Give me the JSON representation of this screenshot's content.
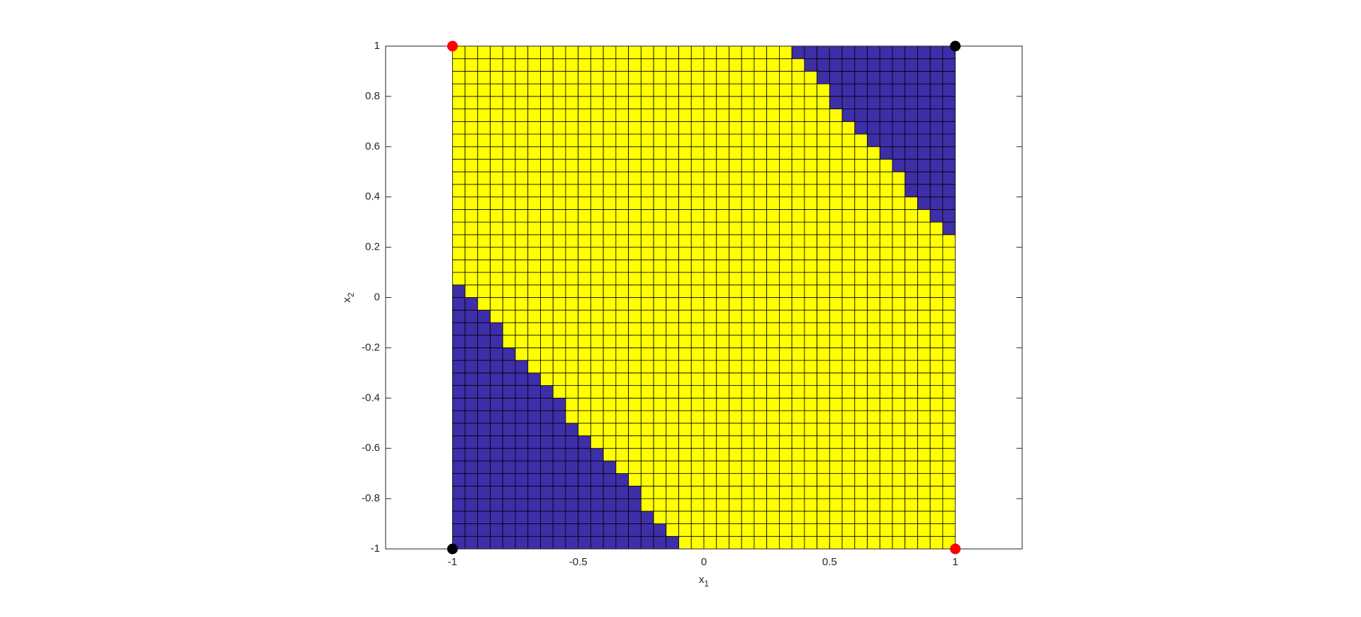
{
  "chart_data": {
    "type": "surface",
    "xlim": [
      -1.266,
      1.266
    ],
    "ylim": [
      -1,
      1
    ],
    "xticks": [
      -1,
      -0.5,
      0,
      0.5,
      1
    ],
    "yticks": [
      -1,
      -0.8,
      -0.6,
      -0.4,
      -0.2,
      0,
      0.2,
      0.4,
      0.6,
      0.8,
      1
    ],
    "xlabel": {
      "text": "x",
      "subscript": "1"
    },
    "ylabel": {
      "text": "x",
      "subscript": "2"
    },
    "grid_x": [
      -1,
      1
    ],
    "grid_y": [
      -1,
      1
    ],
    "cmap": [
      "#3e2ea8",
      "#ffff00"
    ],
    "z": [
      [
        0,
        0,
        0,
        0,
        0,
        0,
        0,
        0,
        0,
        0,
        0,
        0,
        0,
        0,
        0,
        0,
        0,
        0,
        1,
        1,
        1,
        1,
        1,
        1,
        1,
        1,
        1,
        1,
        1,
        1,
        1,
        1,
        1,
        1,
        1,
        1,
        1,
        1,
        1,
        1
      ],
      [
        0,
        0,
        0,
        0,
        0,
        0,
        0,
        0,
        0,
        0,
        0,
        0,
        0,
        0,
        0,
        0,
        0,
        1,
        1,
        1,
        1,
        1,
        1,
        1,
        1,
        1,
        1,
        1,
        1,
        1,
        1,
        1,
        1,
        1,
        1,
        1,
        1,
        1,
        1,
        1
      ],
      [
        0,
        0,
        0,
        0,
        0,
        0,
        0,
        0,
        0,
        0,
        0,
        0,
        0,
        0,
        0,
        0,
        1,
        1,
        1,
        1,
        1,
        1,
        1,
        1,
        1,
        1,
        1,
        1,
        1,
        1,
        1,
        1,
        1,
        1,
        1,
        1,
        1,
        1,
        1,
        1
      ],
      [
        0,
        0,
        0,
        0,
        0,
        0,
        0,
        0,
        0,
        0,
        0,
        0,
        0,
        0,
        0,
        1,
        1,
        1,
        1,
        1,
        1,
        1,
        1,
        1,
        1,
        1,
        1,
        1,
        1,
        1,
        1,
        1,
        1,
        1,
        1,
        1,
        1,
        1,
        1,
        1
      ],
      [
        0,
        0,
        0,
        0,
        0,
        0,
        0,
        0,
        0,
        0,
        0,
        0,
        0,
        0,
        0,
        1,
        1,
        1,
        1,
        1,
        1,
        1,
        1,
        1,
        1,
        1,
        1,
        1,
        1,
        1,
        1,
        1,
        1,
        1,
        1,
        1,
        1,
        1,
        1,
        1
      ],
      [
        0,
        0,
        0,
        0,
        0,
        0,
        0,
        0,
        0,
        0,
        0,
        0,
        0,
        0,
        1,
        1,
        1,
        1,
        1,
        1,
        1,
        1,
        1,
        1,
        1,
        1,
        1,
        1,
        1,
        1,
        1,
        1,
        1,
        1,
        1,
        1,
        1,
        1,
        1,
        1
      ],
      [
        0,
        0,
        0,
        0,
        0,
        0,
        0,
        0,
        0,
        0,
        0,
        0,
        0,
        1,
        1,
        1,
        1,
        1,
        1,
        1,
        1,
        1,
        1,
        1,
        1,
        1,
        1,
        1,
        1,
        1,
        1,
        1,
        1,
        1,
        1,
        1,
        1,
        1,
        1,
        1
      ],
      [
        0,
        0,
        0,
        0,
        0,
        0,
        0,
        0,
        0,
        0,
        0,
        0,
        1,
        1,
        1,
        1,
        1,
        1,
        1,
        1,
        1,
        1,
        1,
        1,
        1,
        1,
        1,
        1,
        1,
        1,
        1,
        1,
        1,
        1,
        1,
        1,
        1,
        1,
        1,
        1
      ],
      [
        0,
        0,
        0,
        0,
        0,
        0,
        0,
        0,
        0,
        0,
        0,
        1,
        1,
        1,
        1,
        1,
        1,
        1,
        1,
        1,
        1,
        1,
        1,
        1,
        1,
        1,
        1,
        1,
        1,
        1,
        1,
        1,
        1,
        1,
        1,
        1,
        1,
        1,
        1,
        1
      ],
      [
        0,
        0,
        0,
        0,
        0,
        0,
        0,
        0,
        0,
        0,
        1,
        1,
        1,
        1,
        1,
        1,
        1,
        1,
        1,
        1,
        1,
        1,
        1,
        1,
        1,
        1,
        1,
        1,
        1,
        1,
        1,
        1,
        1,
        1,
        1,
        1,
        1,
        1,
        1,
        1
      ],
      [
        0,
        0,
        0,
        0,
        0,
        0,
        0,
        0,
        0,
        1,
        1,
        1,
        1,
        1,
        1,
        1,
        1,
        1,
        1,
        1,
        1,
        1,
        1,
        1,
        1,
        1,
        1,
        1,
        1,
        1,
        1,
        1,
        1,
        1,
        1,
        1,
        1,
        1,
        1,
        1
      ],
      [
        0,
        0,
        0,
        0,
        0,
        0,
        0,
        0,
        0,
        1,
        1,
        1,
        1,
        1,
        1,
        1,
        1,
        1,
        1,
        1,
        1,
        1,
        1,
        1,
        1,
        1,
        1,
        1,
        1,
        1,
        1,
        1,
        1,
        1,
        1,
        1,
        1,
        1,
        1,
        1
      ],
      [
        0,
        0,
        0,
        0,
        0,
        0,
        0,
        0,
        1,
        1,
        1,
        1,
        1,
        1,
        1,
        1,
        1,
        1,
        1,
        1,
        1,
        1,
        1,
        1,
        1,
        1,
        1,
        1,
        1,
        1,
        1,
        1,
        1,
        1,
        1,
        1,
        1,
        1,
        1,
        1
      ],
      [
        0,
        0,
        0,
        0,
        0,
        0,
        0,
        1,
        1,
        1,
        1,
        1,
        1,
        1,
        1,
        1,
        1,
        1,
        1,
        1,
        1,
        1,
        1,
        1,
        1,
        1,
        1,
        1,
        1,
        1,
        1,
        1,
        1,
        1,
        1,
        1,
        1,
        1,
        1,
        1
      ],
      [
        0,
        0,
        0,
        0,
        0,
        0,
        1,
        1,
        1,
        1,
        1,
        1,
        1,
        1,
        1,
        1,
        1,
        1,
        1,
        1,
        1,
        1,
        1,
        1,
        1,
        1,
        1,
        1,
        1,
        1,
        1,
        1,
        1,
        1,
        1,
        1,
        1,
        1,
        1,
        1
      ],
      [
        0,
        0,
        0,
        0,
        0,
        1,
        1,
        1,
        1,
        1,
        1,
        1,
        1,
        1,
        1,
        1,
        1,
        1,
        1,
        1,
        1,
        1,
        1,
        1,
        1,
        1,
        1,
        1,
        1,
        1,
        1,
        1,
        1,
        1,
        1,
        1,
        1,
        1,
        1,
        1
      ],
      [
        0,
        0,
        0,
        0,
        1,
        1,
        1,
        1,
        1,
        1,
        1,
        1,
        1,
        1,
        1,
        1,
        1,
        1,
        1,
        1,
        1,
        1,
        1,
        1,
        1,
        1,
        1,
        1,
        1,
        1,
        1,
        1,
        1,
        1,
        1,
        1,
        1,
        1,
        1,
        1
      ],
      [
        0,
        0,
        0,
        0,
        1,
        1,
        1,
        1,
        1,
        1,
        1,
        1,
        1,
        1,
        1,
        1,
        1,
        1,
        1,
        1,
        1,
        1,
        1,
        1,
        1,
        1,
        1,
        1,
        1,
        1,
        1,
        1,
        1,
        1,
        1,
        1,
        1,
        1,
        1,
        1
      ],
      [
        0,
        0,
        0,
        1,
        1,
        1,
        1,
        1,
        1,
        1,
        1,
        1,
        1,
        1,
        1,
        1,
        1,
        1,
        1,
        1,
        1,
        1,
        1,
        1,
        1,
        1,
        1,
        1,
        1,
        1,
        1,
        1,
        1,
        1,
        1,
        1,
        1,
        1,
        1,
        1
      ],
      [
        0,
        0,
        1,
        1,
        1,
        1,
        1,
        1,
        1,
        1,
        1,
        1,
        1,
        1,
        1,
        1,
        1,
        1,
        1,
        1,
        1,
        1,
        1,
        1,
        1,
        1,
        1,
        1,
        1,
        1,
        1,
        1,
        1,
        1,
        1,
        1,
        1,
        1,
        1,
        1
      ],
      [
        0,
        1,
        1,
        1,
        1,
        1,
        1,
        1,
        1,
        1,
        1,
        1,
        1,
        1,
        1,
        1,
        1,
        1,
        1,
        1,
        1,
        1,
        1,
        1,
        1,
        1,
        1,
        1,
        1,
        1,
        1,
        1,
        1,
        1,
        1,
        1,
        1,
        1,
        1,
        1
      ],
      [
        1,
        1,
        1,
        1,
        1,
        1,
        1,
        1,
        1,
        1,
        1,
        1,
        1,
        1,
        1,
        1,
        1,
        1,
        1,
        1,
        1,
        1,
        1,
        1,
        1,
        1,
        1,
        1,
        1,
        1,
        1,
        1,
        1,
        1,
        1,
        1,
        1,
        1,
        1,
        1
      ],
      [
        1,
        1,
        1,
        1,
        1,
        1,
        1,
        1,
        1,
        1,
        1,
        1,
        1,
        1,
        1,
        1,
        1,
        1,
        1,
        1,
        1,
        1,
        1,
        1,
        1,
        1,
        1,
        1,
        1,
        1,
        1,
        1,
        1,
        1,
        1,
        1,
        1,
        1,
        1,
        1
      ],
      [
        1,
        1,
        1,
        1,
        1,
        1,
        1,
        1,
        1,
        1,
        1,
        1,
        1,
        1,
        1,
        1,
        1,
        1,
        1,
        1,
        1,
        1,
        1,
        1,
        1,
        1,
        1,
        1,
        1,
        1,
        1,
        1,
        1,
        1,
        1,
        1,
        1,
        1,
        1,
        1
      ],
      [
        1,
        1,
        1,
        1,
        1,
        1,
        1,
        1,
        1,
        1,
        1,
        1,
        1,
        1,
        1,
        1,
        1,
        1,
        1,
        1,
        1,
        1,
        1,
        1,
        1,
        1,
        1,
        1,
        1,
        1,
        1,
        1,
        1,
        1,
        1,
        1,
        1,
        1,
        1,
        1
      ],
      [
        1,
        1,
        1,
        1,
        1,
        1,
        1,
        1,
        1,
        1,
        1,
        1,
        1,
        1,
        1,
        1,
        1,
        1,
        1,
        1,
        1,
        1,
        1,
        1,
        1,
        1,
        1,
        1,
        1,
        1,
        1,
        1,
        1,
        1,
        1,
        1,
        1,
        1,
        1,
        0
      ],
      [
        1,
        1,
        1,
        1,
        1,
        1,
        1,
        1,
        1,
        1,
        1,
        1,
        1,
        1,
        1,
        1,
        1,
        1,
        1,
        1,
        1,
        1,
        1,
        1,
        1,
        1,
        1,
        1,
        1,
        1,
        1,
        1,
        1,
        1,
        1,
        1,
        1,
        1,
        0,
        0
      ],
      [
        1,
        1,
        1,
        1,
        1,
        1,
        1,
        1,
        1,
        1,
        1,
        1,
        1,
        1,
        1,
        1,
        1,
        1,
        1,
        1,
        1,
        1,
        1,
        1,
        1,
        1,
        1,
        1,
        1,
        1,
        1,
        1,
        1,
        1,
        1,
        1,
        1,
        0,
        0,
        0
      ],
      [
        1,
        1,
        1,
        1,
        1,
        1,
        1,
        1,
        1,
        1,
        1,
        1,
        1,
        1,
        1,
        1,
        1,
        1,
        1,
        1,
        1,
        1,
        1,
        1,
        1,
        1,
        1,
        1,
        1,
        1,
        1,
        1,
        1,
        1,
        1,
        1,
        0,
        0,
        0,
        0
      ],
      [
        1,
        1,
        1,
        1,
        1,
        1,
        1,
        1,
        1,
        1,
        1,
        1,
        1,
        1,
        1,
        1,
        1,
        1,
        1,
        1,
        1,
        1,
        1,
        1,
        1,
        1,
        1,
        1,
        1,
        1,
        1,
        1,
        1,
        1,
        1,
        1,
        0,
        0,
        0,
        0
      ],
      [
        1,
        1,
        1,
        1,
        1,
        1,
        1,
        1,
        1,
        1,
        1,
        1,
        1,
        1,
        1,
        1,
        1,
        1,
        1,
        1,
        1,
        1,
        1,
        1,
        1,
        1,
        1,
        1,
        1,
        1,
        1,
        1,
        1,
        1,
        1,
        0,
        0,
        0,
        0,
        0
      ],
      [
        1,
        1,
        1,
        1,
        1,
        1,
        1,
        1,
        1,
        1,
        1,
        1,
        1,
        1,
        1,
        1,
        1,
        1,
        1,
        1,
        1,
        1,
        1,
        1,
        1,
        1,
        1,
        1,
        1,
        1,
        1,
        1,
        1,
        1,
        0,
        0,
        0,
        0,
        0,
        0
      ],
      [
        1,
        1,
        1,
        1,
        1,
        1,
        1,
        1,
        1,
        1,
        1,
        1,
        1,
        1,
        1,
        1,
        1,
        1,
        1,
        1,
        1,
        1,
        1,
        1,
        1,
        1,
        1,
        1,
        1,
        1,
        1,
        1,
        1,
        0,
        0,
        0,
        0,
        0,
        0,
        0
      ],
      [
        1,
        1,
        1,
        1,
        1,
        1,
        1,
        1,
        1,
        1,
        1,
        1,
        1,
        1,
        1,
        1,
        1,
        1,
        1,
        1,
        1,
        1,
        1,
        1,
        1,
        1,
        1,
        1,
        1,
        1,
        1,
        1,
        0,
        0,
        0,
        0,
        0,
        0,
        0,
        0
      ],
      [
        1,
        1,
        1,
        1,
        1,
        1,
        1,
        1,
        1,
        1,
        1,
        1,
        1,
        1,
        1,
        1,
        1,
        1,
        1,
        1,
        1,
        1,
        1,
        1,
        1,
        1,
        1,
        1,
        1,
        1,
        1,
        0,
        0,
        0,
        0,
        0,
        0,
        0,
        0,
        0
      ],
      [
        1,
        1,
        1,
        1,
        1,
        1,
        1,
        1,
        1,
        1,
        1,
        1,
        1,
        1,
        1,
        1,
        1,
        1,
        1,
        1,
        1,
        1,
        1,
        1,
        1,
        1,
        1,
        1,
        1,
        1,
        0,
        0,
        0,
        0,
        0,
        0,
        0,
        0,
        0,
        0
      ],
      [
        1,
        1,
        1,
        1,
        1,
        1,
        1,
        1,
        1,
        1,
        1,
        1,
        1,
        1,
        1,
        1,
        1,
        1,
        1,
        1,
        1,
        1,
        1,
        1,
        1,
        1,
        1,
        1,
        1,
        1,
        0,
        0,
        0,
        0,
        0,
        0,
        0,
        0,
        0,
        0
      ],
      [
        1,
        1,
        1,
        1,
        1,
        1,
        1,
        1,
        1,
        1,
        1,
        1,
        1,
        1,
        1,
        1,
        1,
        1,
        1,
        1,
        1,
        1,
        1,
        1,
        1,
        1,
        1,
        1,
        1,
        0,
        0,
        0,
        0,
        0,
        0,
        0,
        0,
        0,
        0,
        0
      ],
      [
        1,
        1,
        1,
        1,
        1,
        1,
        1,
        1,
        1,
        1,
        1,
        1,
        1,
        1,
        1,
        1,
        1,
        1,
        1,
        1,
        1,
        1,
        1,
        1,
        1,
        1,
        1,
        1,
        0,
        0,
        0,
        0,
        0,
        0,
        0,
        0,
        0,
        0,
        0,
        0
      ],
      [
        1,
        1,
        1,
        1,
        1,
        1,
        1,
        1,
        1,
        1,
        1,
        1,
        1,
        1,
        1,
        1,
        1,
        1,
        1,
        1,
        1,
        1,
        1,
        1,
        1,
        1,
        1,
        0,
        0,
        0,
        0,
        0,
        0,
        0,
        0,
        0,
        0,
        0,
        0,
        0
      ]
    ],
    "series": [
      {
        "color": "#ff0000",
        "x": [
          -1,
          1
        ],
        "y": [
          1,
          -1
        ]
      },
      {
        "color": "#000000",
        "x": [
          -1,
          1
        ],
        "y": [
          -1,
          1
        ]
      }
    ]
  }
}
